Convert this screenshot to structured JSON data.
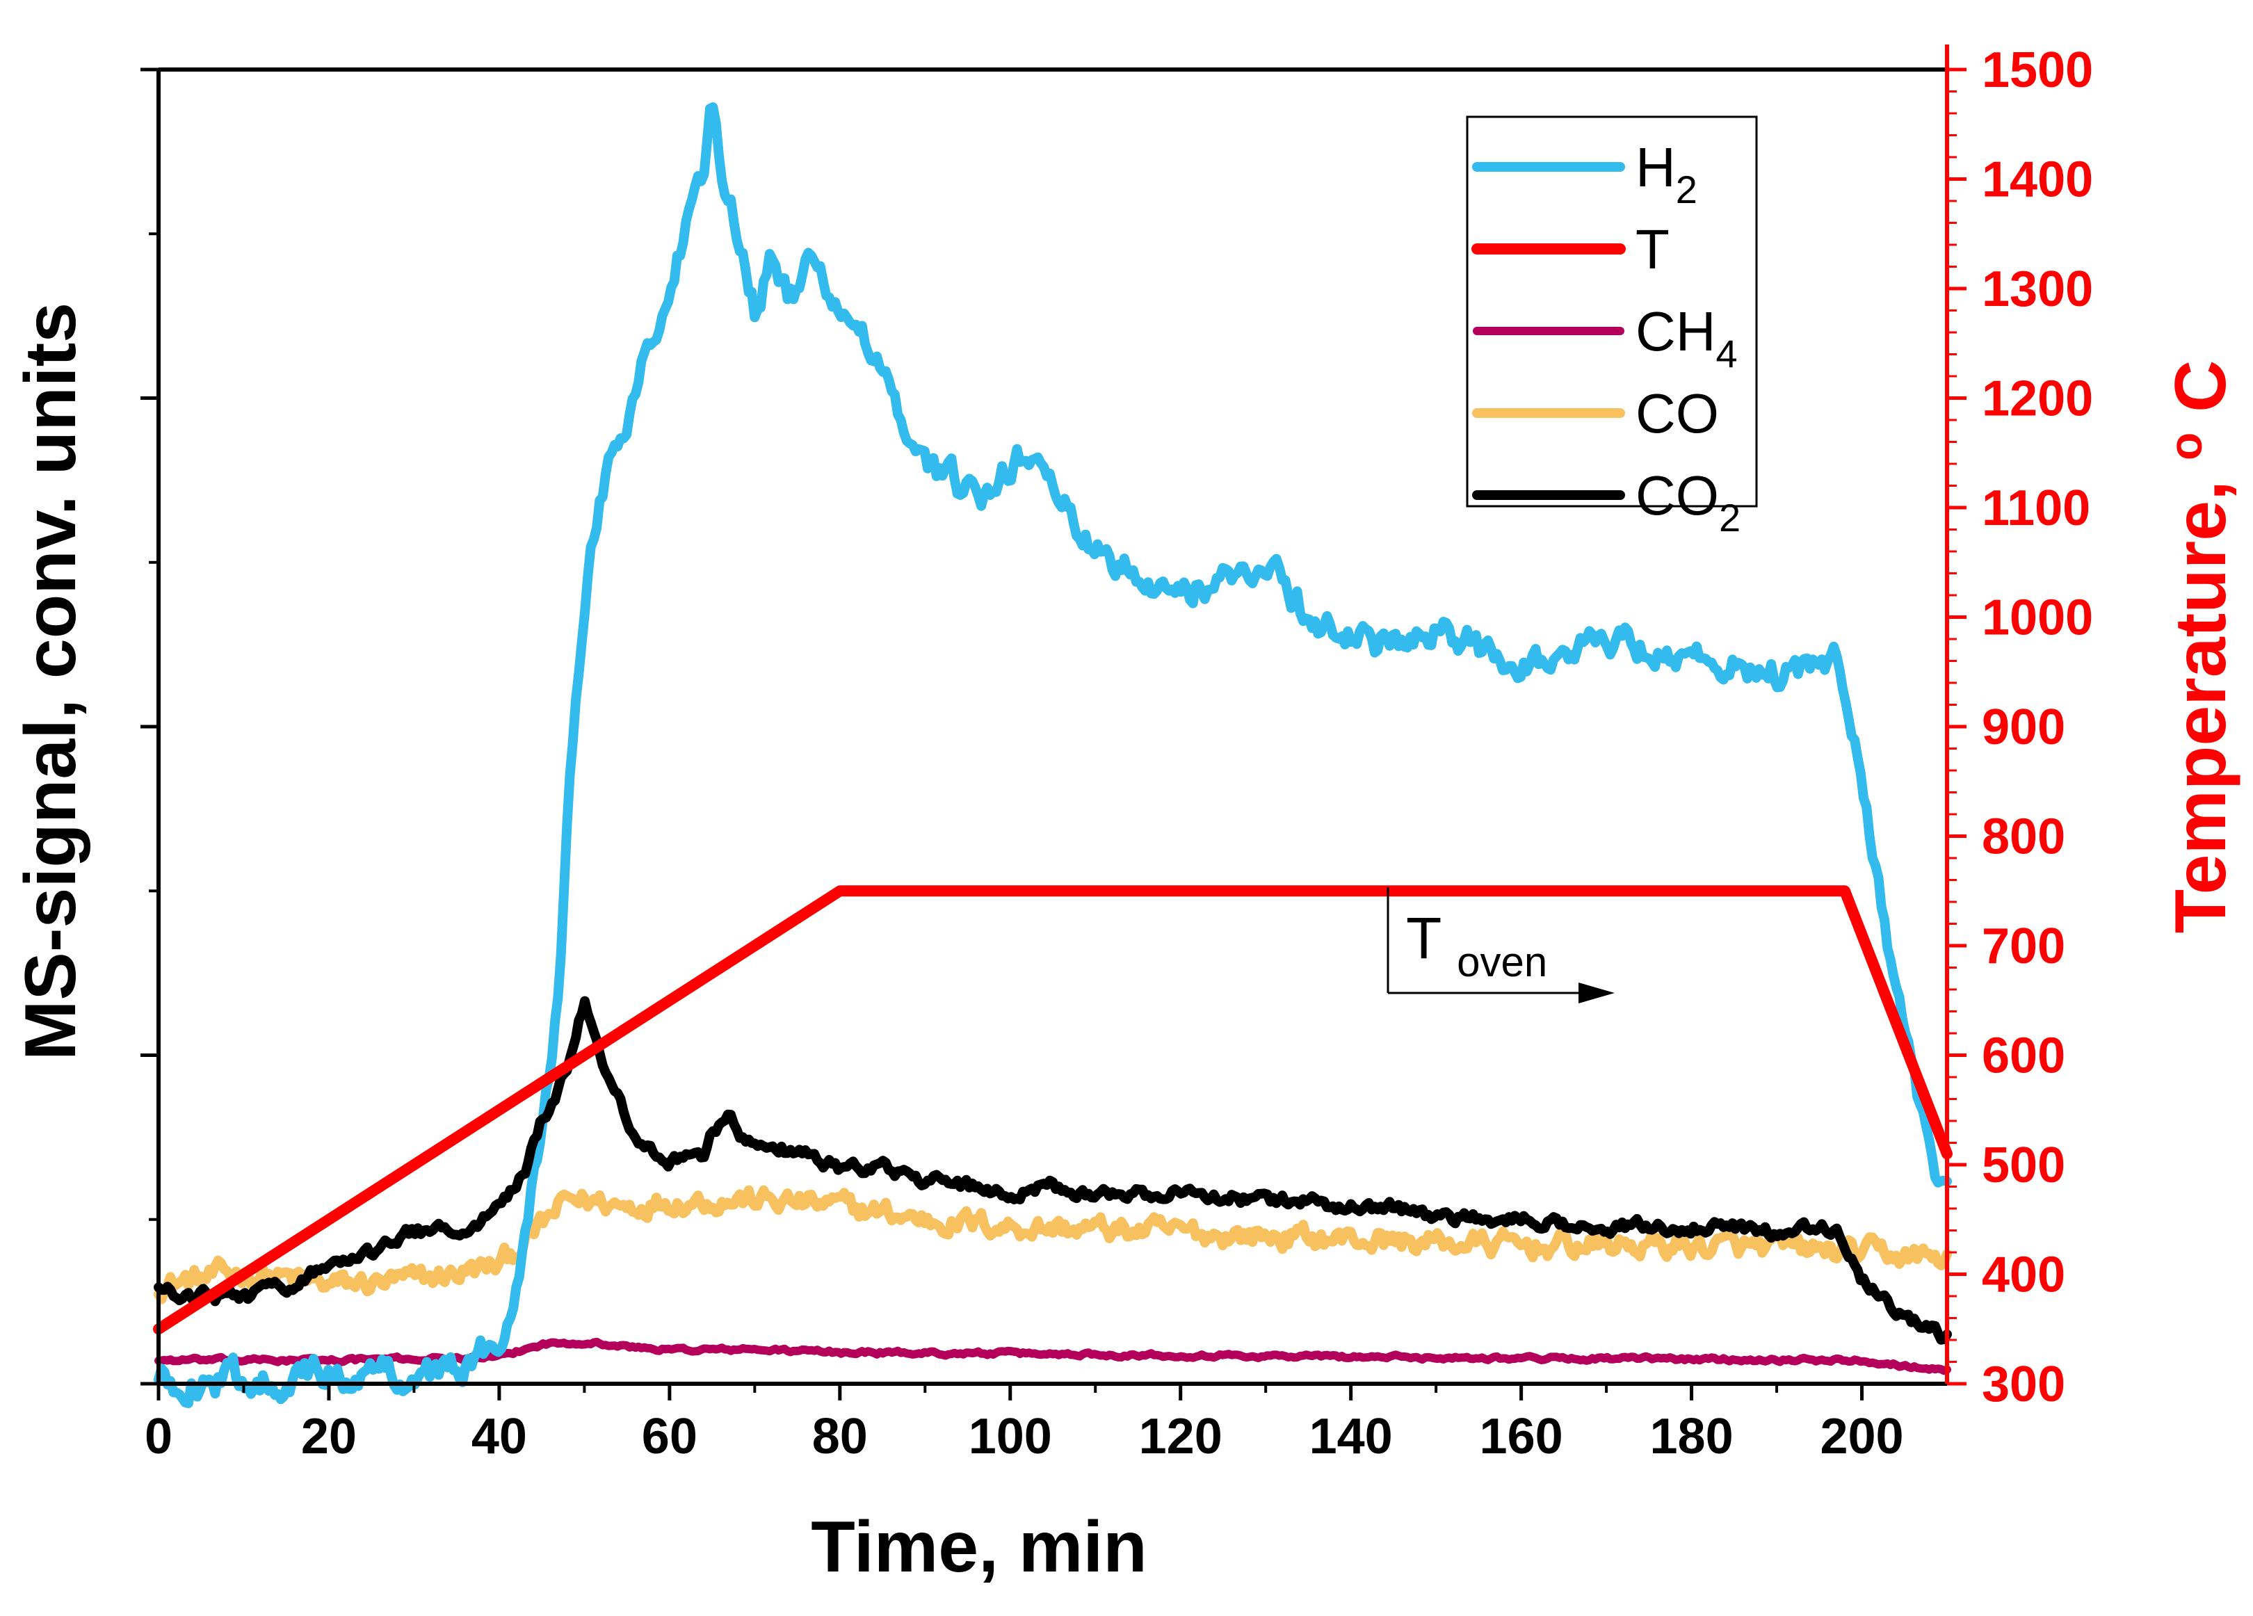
{
  "chart_data": {
    "type": "line",
    "xlabel": "Time, min",
    "ylabel_left": "MS-signal, conv. units",
    "ylabel_right": "Temperature, ",
    "ylabel_right_unit_sup": "o",
    "ylabel_right_unit": "C",
    "xlim": [
      0,
      210
    ],
    "ylim_left": [
      0,
      100
    ],
    "ylim_right": [
      300,
      1500
    ],
    "x_ticks": [
      "0",
      "20",
      "40",
      "60",
      "80",
      "100",
      "120",
      "140",
      "160",
      "180",
      "200"
    ],
    "x_tick_values": [
      0,
      20,
      40,
      60,
      80,
      100,
      120,
      140,
      160,
      180,
      200
    ],
    "y_right_ticks": [
      "300",
      "400",
      "500",
      "600",
      "700",
      "800",
      "900",
      "1000",
      "1100",
      "1200",
      "1300",
      "1400",
      "1500"
    ],
    "y_right_tick_values": [
      300,
      400,
      500,
      600,
      700,
      800,
      900,
      1000,
      1100,
      1200,
      1300,
      1400,
      1500
    ],
    "colors": {
      "H2": "#33bbee",
      "T": "#ff0000",
      "CH4": "#b5005b",
      "CO": "#f7c15f",
      "CO2": "#000000",
      "axis_right": "#ff0000",
      "axis": "#000000"
    },
    "legend": [
      {
        "key": "H2",
        "base": "H",
        "sub": "2"
      },
      {
        "key": "T",
        "base": "T",
        "sub": ""
      },
      {
        "key": "CH4",
        "base": "CH",
        "sub": "4"
      },
      {
        "key": "CO",
        "base": "CO",
        "sub": ""
      },
      {
        "key": "CO2",
        "base": "CO",
        "sub": "2"
      }
    ],
    "annotation": {
      "base": "T",
      "sub": "oven"
    },
    "series": [
      {
        "name": "H2",
        "axis": "left",
        "noise": 1.2,
        "x": [
          0,
          35,
          40,
          42,
          45,
          47,
          48,
          50,
          52,
          55,
          57,
          60,
          62,
          64,
          65,
          66,
          68,
          70,
          72,
          74,
          76,
          78,
          80,
          82,
          84,
          86,
          88,
          90,
          95,
          98,
          100,
          103,
          105,
          108,
          110,
          115,
          120,
          125,
          130,
          135,
          140,
          145,
          150,
          155,
          160,
          165,
          170,
          175,
          180,
          185,
          190,
          195,
          197,
          199,
          202,
          205,
          208,
          210
        ],
        "y": [
          0.1,
          1,
          3,
          8,
          20,
          30,
          43,
          60,
          68,
          74,
          78,
          83,
          88,
          91,
          98,
          93,
          88,
          82,
          86,
          82,
          85,
          84,
          82,
          80,
          78,
          76,
          70,
          70,
          68,
          67,
          70,
          71,
          68,
          65,
          63,
          62,
          60,
          61,
          63,
          58,
          57,
          56,
          57,
          56,
          55,
          55,
          57,
          56,
          55,
          55,
          54,
          54,
          55,
          50,
          38,
          26,
          17,
          14
        ]
      },
      {
        "name": "CO",
        "axis": "left",
        "noise": 0.9,
        "x": [
          0,
          10,
          20,
          30,
          40,
          45,
          48,
          50,
          55,
          60,
          65,
          70,
          80,
          90,
          100,
          120,
          140,
          160,
          180,
          200,
          210
        ],
        "y": [
          7.5,
          8.5,
          7.5,
          7.8,
          9,
          12,
          14,
          14,
          13.5,
          14,
          14,
          14,
          13.5,
          12.5,
          12,
          11.5,
          11,
          10.5,
          10.5,
          10,
          9.5
        ]
      },
      {
        "name": "CO2",
        "axis": "left",
        "noise": 0.5,
        "x": [
          0,
          10,
          15,
          20,
          25,
          30,
          35,
          38,
          40,
          43,
          45,
          48,
          50,
          51,
          52,
          55,
          58,
          60,
          62,
          64,
          65,
          66,
          67,
          68,
          70,
          75,
          80,
          85,
          90,
          95,
          100,
          105,
          110,
          120,
          130,
          140,
          145,
          150,
          160,
          170,
          180,
          190,
          195,
          197,
          200,
          205,
          210
        ],
        "y": [
          7,
          6.5,
          7.5,
          9,
          10,
          11.5,
          12,
          12.5,
          13.5,
          16,
          20,
          24,
          29,
          27,
          25,
          20,
          17.5,
          17,
          17.5,
          17.5,
          19,
          20,
          21,
          19,
          18.5,
          17.5,
          16.5,
          16.5,
          15.5,
          15,
          14.5,
          15,
          14.5,
          14.5,
          14,
          13.5,
          13.5,
          12.5,
          12.5,
          12,
          12,
          11.5,
          12,
          11.5,
          8,
          5,
          3.5
        ]
      },
      {
        "name": "CH4",
        "axis": "left",
        "noise": 0.15,
        "x": [
          0,
          20,
          40,
          45,
          50,
          55,
          60,
          70,
          80,
          100,
          150,
          200,
          210
        ],
        "y": [
          1.8,
          1.8,
          2,
          3,
          3.2,
          2.8,
          2.6,
          2.6,
          2.4,
          2.3,
          2,
          1.8,
          1
        ]
      },
      {
        "name": "T",
        "axis": "right",
        "noise": 0,
        "x": [
          0,
          80,
          198,
          210
        ],
        "y": [
          350,
          750,
          750,
          510
        ]
      }
    ]
  }
}
